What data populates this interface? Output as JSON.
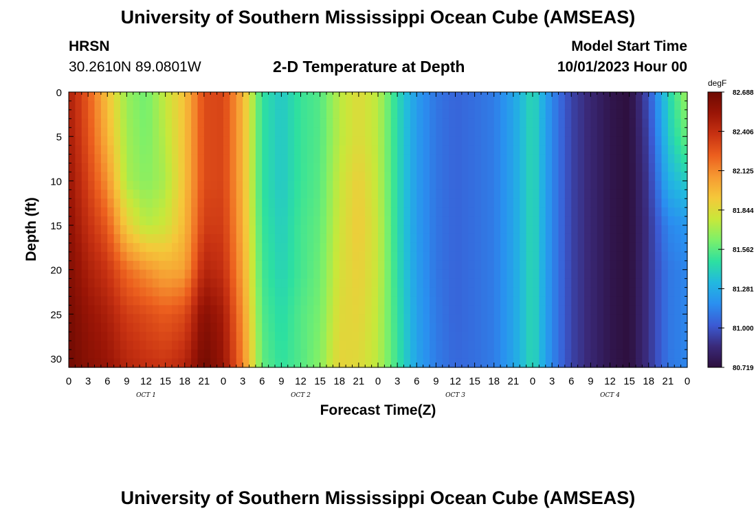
{
  "header": {
    "title": "University of Southern Mississippi Ocean Cube (AMSEAS)",
    "station": "HRSN",
    "coords": "30.2610N  89.0801W",
    "plot_title": "2-D Temperature at Depth",
    "model_label": "Model Start Time",
    "model_time": "10/01/2023 Hour 00"
  },
  "footer": {
    "title": "University of Southern Mississippi Ocean Cube (AMSEAS)"
  },
  "chart_data": {
    "type": "heatmap",
    "title": "2-D Temperature at Depth",
    "xlabel": "Forecast Time(Z)",
    "ylabel": "Depth (ft)",
    "x_range_hours": [
      0,
      96
    ],
    "x_tick_labels": [
      "0",
      "3",
      "6",
      "9",
      "12",
      "15",
      "18",
      "21",
      "0",
      "3",
      "6",
      "9",
      "12",
      "15",
      "18",
      "21",
      "0",
      "3",
      "6",
      "9",
      "12",
      "15",
      "18",
      "21",
      "0",
      "3",
      "6",
      "9",
      "12",
      "15",
      "18",
      "21",
      "0"
    ],
    "day_labels": [
      {
        "label": "OCT 1",
        "hour": 12
      },
      {
        "label": "OCT 2",
        "hour": 36
      },
      {
        "label": "OCT 3",
        "hour": 60
      },
      {
        "label": "OCT 4",
        "hour": 84
      }
    ],
    "y_range_ft": [
      0,
      31
    ],
    "y_ticks": [
      0,
      5,
      10,
      15,
      20,
      25,
      30
    ],
    "colorbar": {
      "unit": "degF",
      "min": 80.719,
      "max": 82.688,
      "tick_labels": [
        "82.688",
        "82.406",
        "82.125",
        "81.844",
        "81.562",
        "81.281",
        "81.000",
        "80.719"
      ],
      "colors": [
        "#2d0f3d",
        "#3a2a7a",
        "#3b5bd4",
        "#2a8ff0",
        "#22b8e0",
        "#2de0a0",
        "#7cf06a",
        "#c8e83a",
        "#f5c83a",
        "#f69a32",
        "#ec5f1e",
        "#c83212",
        "#9a1506",
        "#6e0a02"
      ]
    },
    "temperature_profiles_by_hour": [
      {
        "hour": 0,
        "temps": [
          82.48,
          82.5,
          82.54,
          82.58,
          82.62,
          82.66,
          82.68
        ]
      },
      {
        "hour": 3,
        "temps": [
          82.25,
          82.28,
          82.33,
          82.4,
          82.48,
          82.55,
          82.6
        ]
      },
      {
        "hour": 6,
        "temps": [
          81.95,
          82.0,
          82.1,
          82.25,
          82.38,
          82.48,
          82.55
        ]
      },
      {
        "hour": 9,
        "temps": [
          81.68,
          81.7,
          81.72,
          81.9,
          82.2,
          82.35,
          82.45
        ]
      },
      {
        "hour": 12,
        "temps": [
          81.6,
          81.62,
          81.65,
          81.75,
          82.1,
          82.3,
          82.4
        ]
      },
      {
        "hour": 15,
        "temps": [
          81.78,
          81.75,
          81.72,
          81.8,
          82.02,
          82.25,
          82.38
        ]
      },
      {
        "hour": 18,
        "temps": [
          81.95,
          81.95,
          81.95,
          81.98,
          82.05,
          82.3,
          82.45
        ]
      },
      {
        "hour": 21,
        "temps": [
          82.3,
          82.3,
          82.3,
          82.35,
          82.45,
          82.6,
          82.68
        ]
      },
      {
        "hour": 24,
        "temps": [
          82.32,
          82.32,
          82.32,
          82.35,
          82.4,
          82.5,
          82.55
        ]
      },
      {
        "hour": 27,
        "temps": [
          82.0,
          82.0,
          82.0,
          82.02,
          82.05,
          82.1,
          82.15
        ]
      },
      {
        "hour": 30,
        "temps": [
          81.48,
          81.48,
          81.48,
          81.5,
          81.52,
          81.55,
          81.58
        ]
      },
      {
        "hour": 33,
        "temps": [
          81.38,
          81.38,
          81.38,
          81.4,
          81.42,
          81.45,
          81.48
        ]
      },
      {
        "hour": 36,
        "temps": [
          81.5,
          81.5,
          81.5,
          81.52,
          81.52,
          81.55,
          81.55
        ]
      },
      {
        "hour": 39,
        "temps": [
          81.55,
          81.55,
          81.56,
          81.58,
          81.6,
          81.62,
          81.65
        ]
      },
      {
        "hour": 42,
        "temps": [
          81.75,
          81.75,
          81.78,
          81.8,
          81.82,
          81.85,
          81.88
        ]
      },
      {
        "hour": 45,
        "temps": [
          81.85,
          81.85,
          81.9,
          81.92,
          81.9,
          81.88,
          81.85
        ]
      },
      {
        "hour": 48,
        "temps": [
          81.75,
          81.75,
          81.76,
          81.78,
          81.78,
          81.76,
          81.75
        ]
      },
      {
        "hour": 51,
        "temps": [
          81.45,
          81.45,
          81.45,
          81.45,
          81.46,
          81.48,
          81.5
        ]
      },
      {
        "hour": 54,
        "temps": [
          81.22,
          81.22,
          81.22,
          81.22,
          81.23,
          81.24,
          81.25
        ]
      },
      {
        "hour": 57,
        "temps": [
          81.1,
          81.1,
          81.1,
          81.1,
          81.1,
          81.11,
          81.12
        ]
      },
      {
        "hour": 60,
        "temps": [
          81.05,
          81.05,
          81.05,
          81.05,
          81.05,
          81.05,
          81.06
        ]
      },
      {
        "hour": 63,
        "temps": [
          81.08,
          81.08,
          81.08,
          81.08,
          81.08,
          81.08,
          81.08
        ]
      },
      {
        "hour": 66,
        "temps": [
          81.12,
          81.12,
          81.12,
          81.12,
          81.12,
          81.12,
          81.12
        ]
      },
      {
        "hour": 69,
        "temps": [
          81.25,
          81.25,
          81.25,
          81.25,
          81.25,
          81.25,
          81.25
        ]
      },
      {
        "hour": 72,
        "temps": [
          81.45,
          81.45,
          81.45,
          81.45,
          81.45,
          81.45,
          81.45
        ]
      },
      {
        "hour": 75,
        "temps": [
          81.15,
          81.15,
          81.15,
          81.15,
          81.15,
          81.15,
          81.15
        ]
      },
      {
        "hour": 78,
        "temps": [
          80.95,
          80.95,
          80.95,
          80.95,
          80.95,
          80.95,
          80.95
        ]
      },
      {
        "hour": 81,
        "temps": [
          80.85,
          80.85,
          80.85,
          80.85,
          80.85,
          80.85,
          80.85
        ]
      },
      {
        "hour": 84,
        "temps": [
          80.76,
          80.76,
          80.76,
          80.76,
          80.76,
          80.76,
          80.76
        ]
      },
      {
        "hour": 87,
        "temps": [
          80.72,
          80.72,
          80.72,
          80.72,
          80.72,
          80.72,
          80.72
        ]
      },
      {
        "hour": 90,
        "temps": [
          81.0,
          80.95,
          80.92,
          80.9,
          80.9,
          80.9,
          80.9
        ]
      },
      {
        "hour": 93,
        "temps": [
          81.42,
          81.38,
          81.3,
          81.15,
          81.1,
          81.1,
          81.1
        ]
      },
      {
        "hour": 96,
        "temps": [
          81.7,
          81.6,
          81.4,
          81.2,
          81.15,
          81.15,
          81.15
        ]
      }
    ]
  }
}
